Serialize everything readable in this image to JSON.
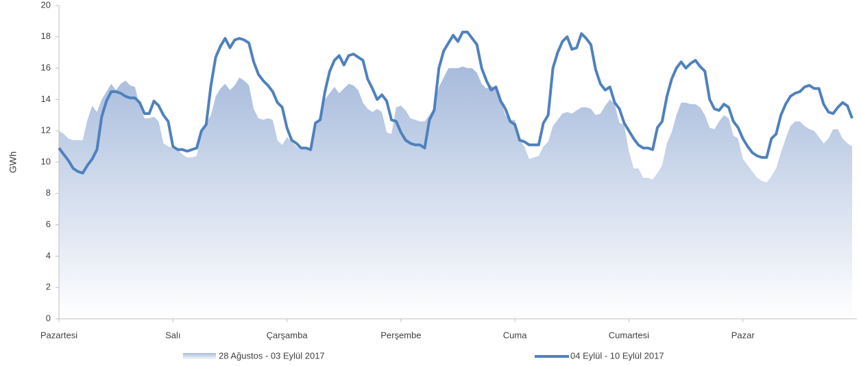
{
  "chart_data": {
    "type": "line",
    "ylabel": "GWh",
    "x": [
      0,
      1,
      2,
      3,
      4,
      5,
      6,
      7,
      8,
      9,
      10,
      11,
      12,
      13,
      14,
      15,
      16,
      17,
      18,
      19,
      20,
      21,
      22,
      23,
      24,
      25,
      26,
      27,
      28,
      29,
      30,
      31,
      32,
      33,
      34,
      35,
      36,
      37,
      38,
      39,
      40,
      41,
      42,
      43,
      44,
      45,
      46,
      47,
      48,
      49,
      50,
      51,
      52,
      53,
      54,
      55,
      56,
      57,
      58,
      59,
      60,
      61,
      62,
      63,
      64,
      65,
      66,
      67,
      68,
      69,
      70,
      71,
      72,
      73,
      74,
      75,
      76,
      77,
      78,
      79,
      80,
      81,
      82,
      83,
      84,
      85,
      86,
      87,
      88,
      89,
      90,
      91,
      92,
      93,
      94,
      95,
      96,
      97,
      98,
      99,
      100,
      101,
      102,
      103,
      104,
      105,
      106,
      107,
      108,
      109,
      110,
      111,
      112,
      113,
      114,
      115,
      116,
      117,
      118,
      119,
      120,
      121,
      122,
      123,
      124,
      125,
      126,
      127,
      128,
      129,
      130,
      131,
      132,
      133,
      134,
      135,
      136,
      137,
      138,
      139,
      140,
      141,
      142,
      143,
      144,
      145,
      146,
      147,
      148,
      149,
      150,
      151,
      152,
      153,
      154,
      155,
      156,
      157,
      158,
      159,
      160,
      161,
      162,
      163,
      164,
      165,
      166,
      167
    ],
    "xlim": [
      0,
      168
    ],
    "xticks": [
      {
        "value": 0,
        "label": "Pazartesi"
      },
      {
        "value": 24,
        "label": "Salı"
      },
      {
        "value": 48,
        "label": "Çarşamba"
      },
      {
        "value": 72,
        "label": "Perşembe"
      },
      {
        "value": 96,
        "label": "Cuma"
      },
      {
        "value": 120,
        "label": "Cumartesi"
      },
      {
        "value": 144,
        "label": "Pazar"
      }
    ],
    "ylim": [
      0,
      20
    ],
    "yticks": [
      0,
      2,
      4,
      6,
      8,
      10,
      12,
      14,
      16,
      18,
      20
    ],
    "series": [
      {
        "name": "28 Ağustos - 03 Eylül 2017",
        "type": "area",
        "color": "#a7bbdc",
        "values": [
          12.0,
          11.8,
          11.5,
          11.4,
          11.4,
          11.4,
          12.7,
          13.6,
          13.2,
          14.0,
          14.5,
          15.0,
          14.6,
          15.0,
          15.2,
          14.9,
          14.8,
          13.6,
          12.8,
          12.8,
          12.9,
          12.6,
          11.2,
          11.0,
          10.9,
          10.8,
          10.5,
          10.3,
          10.3,
          10.4,
          12.0,
          12.5,
          13.0,
          14.2,
          14.7,
          15.0,
          14.6,
          14.9,
          15.4,
          15.2,
          14.9,
          13.4,
          12.8,
          12.7,
          12.8,
          12.7,
          11.4,
          11.1,
          11.6,
          11.3,
          11.0,
          10.9,
          10.8,
          10.8,
          12.2,
          13.0,
          14.0,
          14.4,
          14.8,
          14.4,
          14.7,
          15.0,
          14.9,
          14.6,
          13.8,
          13.4,
          13.2,
          13.4,
          13.2,
          11.9,
          11.8,
          13.5,
          13.6,
          13.3,
          12.8,
          12.7,
          12.6,
          12.6,
          13.0,
          13.5,
          14.8,
          15.4,
          16.0,
          16.0,
          16.0,
          16.1,
          16.0,
          16.0,
          15.7,
          15.0,
          14.7,
          14.9,
          14.6,
          14.0,
          13.0,
          12.7,
          12.7,
          11.4,
          11.0,
          10.2,
          10.3,
          10.4,
          11.0,
          11.3,
          12.3,
          12.7,
          13.1,
          13.2,
          13.1,
          13.3,
          13.5,
          13.5,
          13.4,
          13.0,
          13.1,
          13.6,
          14.0,
          13.7,
          12.5,
          12.4,
          10.7,
          9.6,
          9.6,
          9.0,
          9.0,
          8.9,
          9.3,
          9.8,
          11.2,
          11.9,
          13.0,
          13.8,
          13.8,
          13.7,
          13.7,
          13.5,
          13.0,
          12.2,
          12.1,
          12.6,
          13.0,
          12.8,
          11.7,
          11.5,
          10.2,
          9.8,
          9.4,
          9.0,
          8.8,
          8.7,
          9.1,
          9.6,
          10.6,
          11.5,
          12.3,
          12.6,
          12.6,
          12.3,
          12.1,
          12.0,
          11.6,
          11.2,
          11.5,
          12.1,
          12.1,
          11.5,
          11.2,
          11.0
        ]
      },
      {
        "name": "04 Eylül - 10 Eylül 2017",
        "type": "line",
        "color": "#4f81bd",
        "values": [
          10.9,
          10.5,
          10.1,
          9.6,
          9.4,
          9.3,
          9.8,
          10.2,
          10.8,
          12.9,
          13.9,
          14.5,
          14.5,
          14.4,
          14.2,
          14.1,
          14.1,
          13.8,
          13.1,
          13.1,
          13.9,
          13.6,
          13.0,
          12.6,
          11.0,
          10.8,
          10.8,
          10.7,
          10.8,
          10.9,
          12.0,
          12.4,
          14.9,
          16.7,
          17.4,
          17.9,
          17.3,
          17.8,
          17.9,
          17.8,
          17.6,
          16.4,
          15.6,
          15.2,
          14.9,
          14.5,
          13.8,
          13.5,
          12.2,
          11.4,
          11.2,
          10.9,
          10.9,
          10.8,
          12.5,
          12.7,
          14.5,
          15.8,
          16.5,
          16.8,
          16.2,
          16.8,
          16.9,
          16.7,
          16.5,
          15.3,
          14.7,
          14.0,
          14.3,
          13.9,
          12.7,
          12.6,
          11.9,
          11.4,
          11.2,
          11.1,
          11.1,
          10.9,
          12.7,
          13.3,
          16.0,
          17.1,
          17.6,
          18.1,
          17.7,
          18.3,
          18.3,
          17.9,
          17.5,
          16.0,
          15.2,
          14.6,
          14.8,
          13.9,
          13.4,
          12.6,
          12.4,
          11.4,
          11.3,
          11.1,
          11.1,
          11.1,
          12.5,
          13.0,
          16.0,
          17.0,
          17.7,
          18.0,
          17.2,
          17.3,
          18.2,
          17.9,
          17.5,
          15.9,
          15.0,
          14.6,
          14.8,
          13.8,
          13.4,
          12.5,
          12.0,
          11.5,
          11.1,
          10.9,
          10.9,
          10.8,
          12.2,
          12.6,
          14.2,
          15.3,
          16.0,
          16.4,
          16.0,
          16.3,
          16.5,
          16.1,
          15.8,
          14.0,
          13.4,
          13.3,
          13.7,
          13.5,
          12.6,
          12.2,
          11.5,
          11.0,
          10.6,
          10.4,
          10.3,
          10.3,
          11.5,
          11.8,
          13.0,
          13.7,
          14.2,
          14.4,
          14.5,
          14.8,
          14.9,
          14.7,
          14.7,
          13.7,
          13.2,
          13.1,
          13.5,
          13.8,
          13.6,
          12.8
        ]
      }
    ]
  }
}
